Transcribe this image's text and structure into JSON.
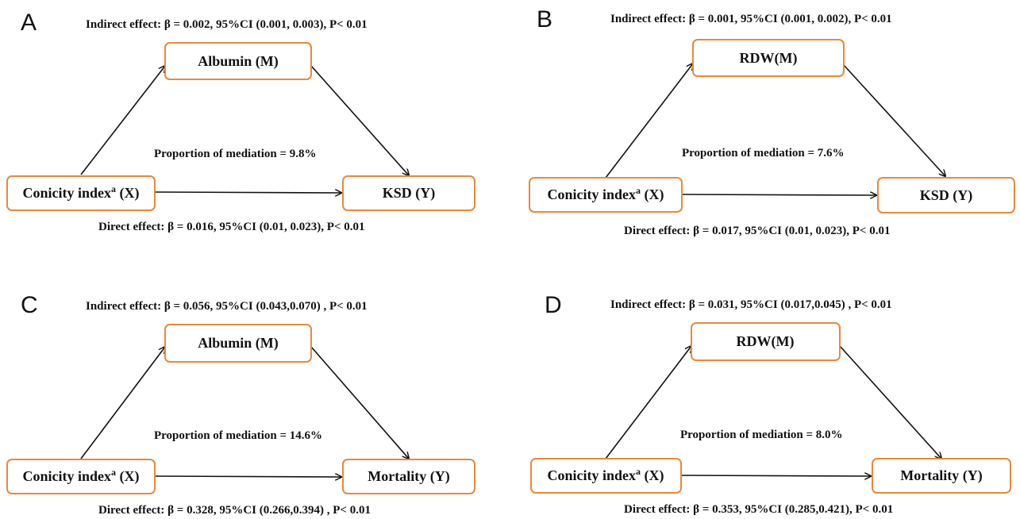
{
  "colors": {
    "box_border": "#e8893a",
    "arrow": "#111111",
    "text": "#111111"
  },
  "panels": [
    {
      "letter": "A",
      "indirect": "Indirect effect: β = 0.002, 95%CI (0.001, 0.003), P< 0.01",
      "mediator": "Albumin (M)",
      "exposure_main": "Conicity index",
      "exposure_sup": "a",
      "exposure_tail": " (X)",
      "outcome": "KSD (Y)",
      "proportion": "Proportion of mediation = 9.8%",
      "direct": "Direct effect: β = 0.016, 95%CI (0.01, 0.023), P< 0.01"
    },
    {
      "letter": "B",
      "indirect": "Indirect effect: β = 0.001, 95%CI (0.001, 0.002), P< 0.01",
      "mediator": "RDW(M)",
      "exposure_main": "Conicity index",
      "exposure_sup": "a",
      "exposure_tail": " (X)",
      "outcome": "KSD (Y)",
      "proportion": "Proportion of mediation = 7.6%",
      "direct": "Direct effect: β = 0.017, 95%CI (0.01, 0.023), P< 0.01"
    },
    {
      "letter": "C",
      "indirect": "Indirect effect: β = 0.056, 95%CI (0.043,0.070) , P< 0.01",
      "mediator": "Albumin (M)",
      "exposure_main": "Conicity index",
      "exposure_sup": "a",
      "exposure_tail": " (X)",
      "outcome": "Mortality (Y)",
      "proportion": "Proportion of mediation = 14.6%",
      "direct": "Direct effect: β = 0.328, 95%CI (0.266,0.394) , P< 0.01"
    },
    {
      "letter": "D",
      "indirect": "Indirect effect: β = 0.031, 95%CI (0.017,0.045) , P< 0.01",
      "mediator": "RDW(M)",
      "exposure_main": "Conicity index",
      "exposure_sup": "a",
      "exposure_tail": " (X)",
      "outcome": "Mortality (Y)",
      "proportion": "Proportion of mediation = 8.0%",
      "direct": "Direct effect: β = 0.353, 95%CI (0.285,0.421), P< 0.01"
    }
  ]
}
